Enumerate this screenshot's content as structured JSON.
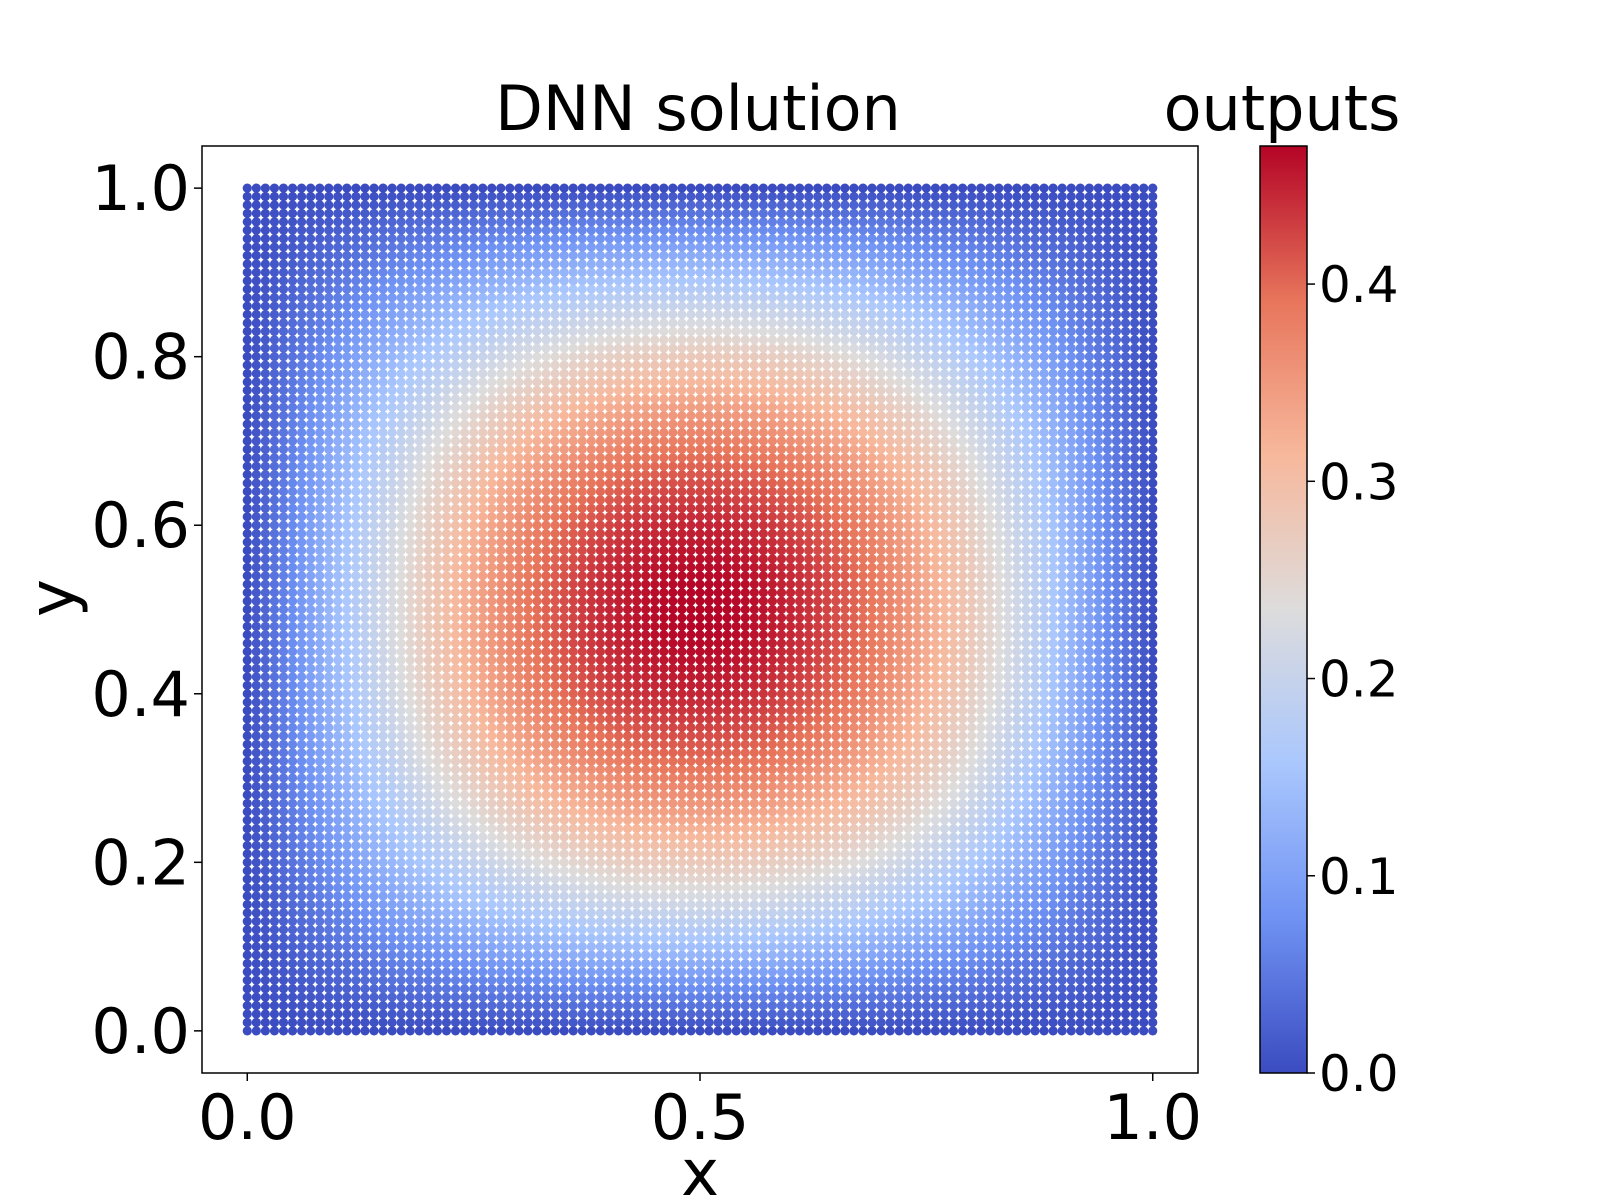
{
  "chart_data": {
    "type": "scatter",
    "title": "DNN solution",
    "xlabel": "x",
    "ylabel": "y",
    "xlim": [
      -0.05,
      1.05
    ],
    "ylim": [
      -0.05,
      1.05
    ],
    "xticks": [
      0.0,
      0.5,
      1.0
    ],
    "xtick_labels": [
      "0.0",
      "0.5",
      "1.0"
    ],
    "yticks": [
      0.0,
      0.2,
      0.4,
      0.6,
      0.8,
      1.0
    ],
    "ytick_labels": [
      "0.0",
      "0.2",
      "0.4",
      "0.6",
      "0.8",
      "1.0"
    ],
    "grid": false,
    "points": {
      "x_range": [
        0.0,
        1.0
      ],
      "y_range": [
        0.0,
        1.0
      ],
      "points_per_axis": 101,
      "value_function": "0.47 * sin(pi*x) * sin(pi*y)"
    },
    "colorbar": {
      "label": "outputs",
      "colormap": "coolwarm",
      "range": [
        0.0,
        0.47
      ],
      "ticks": [
        0.0,
        0.1,
        0.2,
        0.3,
        0.4
      ],
      "tick_labels": [
        "0.0",
        "0.1",
        "0.2",
        "0.3",
        "0.4"
      ],
      "colors": [
        "#3b4cc0",
        "#6f92f3",
        "#aac7fd",
        "#dddcdc",
        "#f7b89c",
        "#e7755b",
        "#b40426"
      ]
    }
  }
}
